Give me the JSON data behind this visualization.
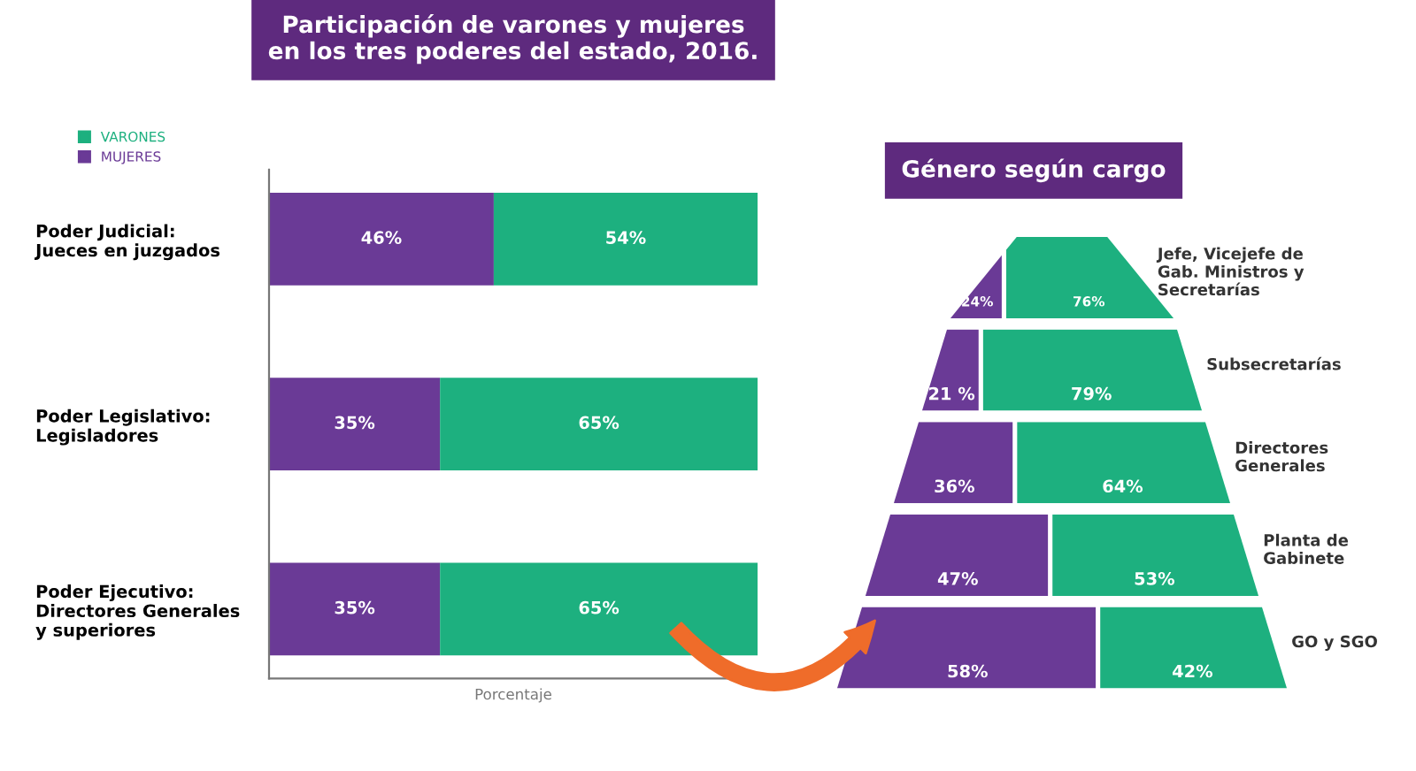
{
  "chart_data": [
    {
      "type": "bar",
      "orientation": "horizontal",
      "stacked": true,
      "xlim": [
        0,
        100
      ],
      "tick_labels": "y",
      "title": "Participación de varones y mujeres\nen los tres poderes del estado, 2016.",
      "xlabel": "Porcentaje",
      "legend": "top left",
      "categories": [
        "Poder Judicial:\nJueces en juzgados",
        "Poder Legislativo:\nLegisladores",
        "Poder Ejecutivo:\nDirectores Generales\ny superiores"
      ],
      "series": [
        {
          "name": "MUJERES",
          "color": "#6a3a96",
          "values": [
            46,
            35,
            35
          ],
          "value_labels": [
            "46%",
            "35%",
            "35%"
          ]
        },
        {
          "name": "VARONES",
          "color": "#1db07f",
          "values": [
            54,
            65,
            65
          ],
          "value_labels": [
            "54%",
            "65%",
            "65%"
          ]
        }
      ]
    },
    {
      "type": "other",
      "title": "Género según cargo",
      "categories": [
        "Jefe, Vicejefe de\nGab. Ministros y\nSecretarías",
        "Subsecretarías",
        "Directores\nGenerales",
        "Planta de\nGabinete",
        "GO y SGO"
      ],
      "series": [
        {
          "color": "#6a3a96",
          "values": [
            24,
            21,
            36,
            47,
            58
          ],
          "value_labels": [
            "24%",
            "21 %",
            "36%",
            "47%",
            "58%"
          ]
        },
        {
          "color": "#1db07f",
          "values": [
            76,
            79,
            64,
            53,
            42
          ],
          "value_labels": [
            "76%",
            "79%",
            "64%",
            "53%",
            "42%"
          ]
        }
      ]
    }
  ]
}
